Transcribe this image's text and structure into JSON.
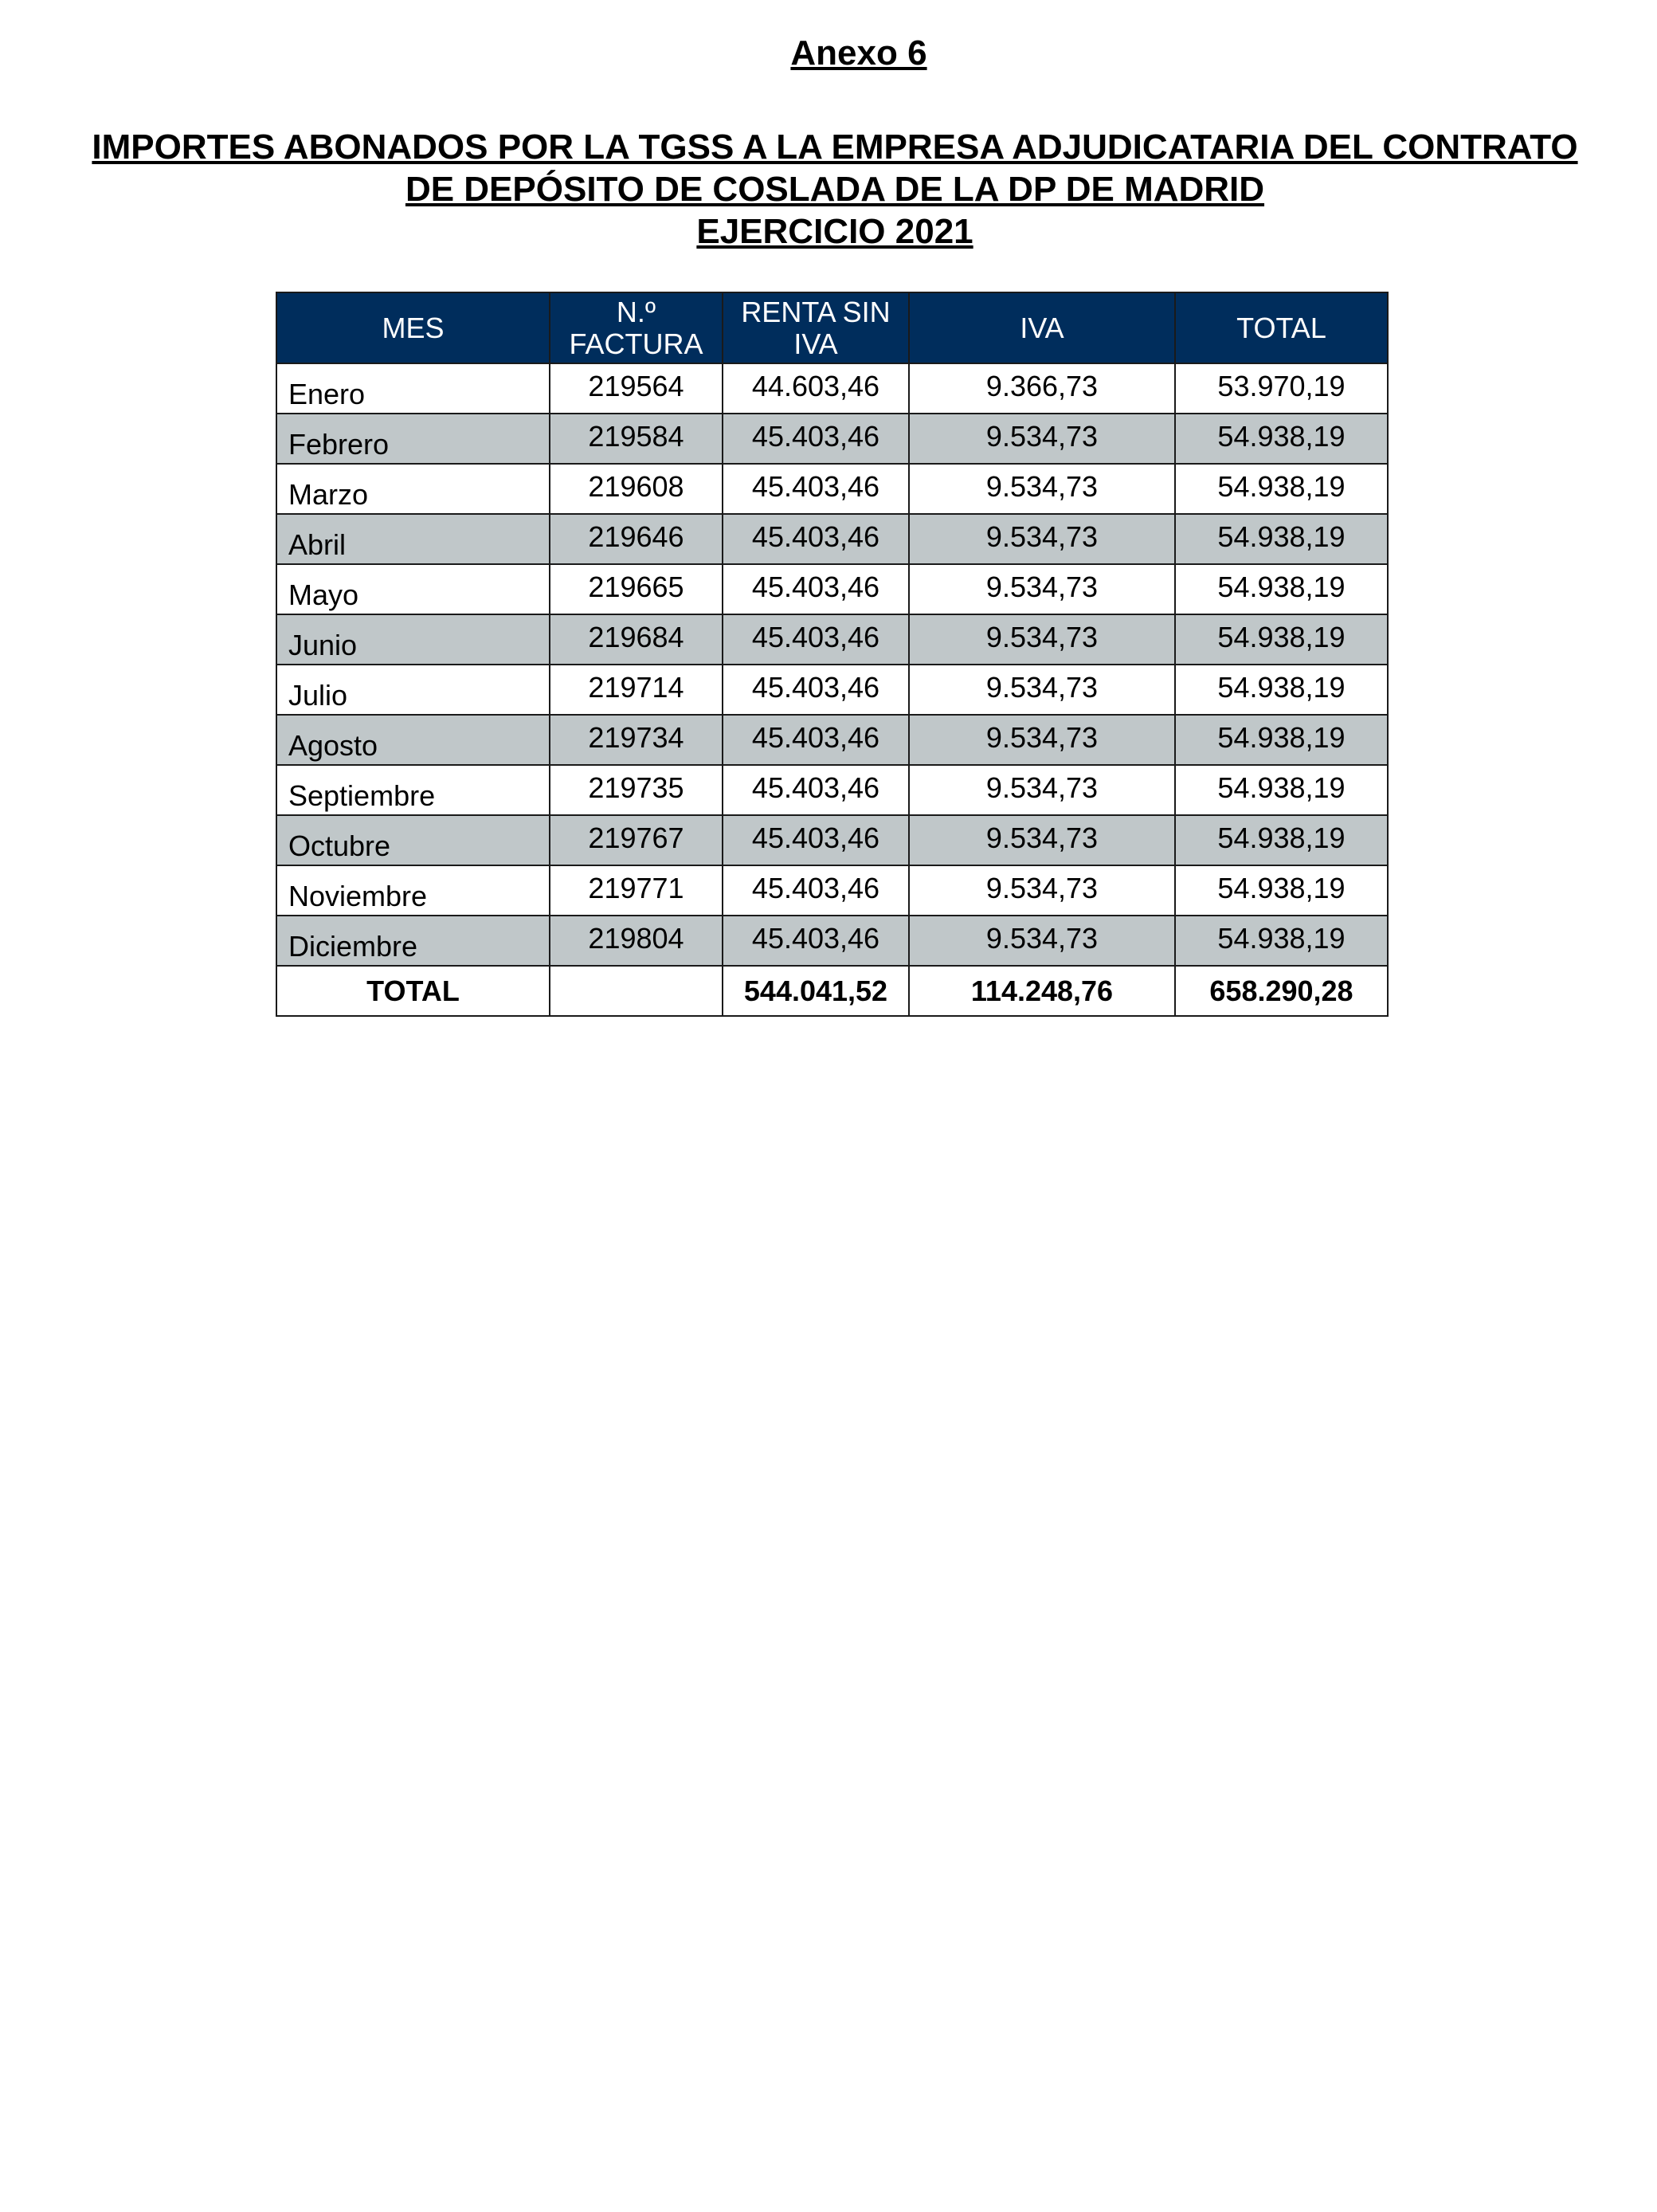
{
  "annex_title": "Anexo 6",
  "heading": {
    "line1": "IMPORTES ABONADOS POR LA TGSS A LA EMPRESA ADJUDICATARIA DEL CONTRATO",
    "line2": "DE DEPÓSITO DE COSLADA DE LA DP DE MADRID",
    "line3": "EJERCICIO 2021"
  },
  "colors": {
    "header_bg": "#002d5c",
    "alt_row_bg": "#c0c7c9"
  },
  "table": {
    "headers": [
      "MES",
      "N.º FACTURA",
      "RENTA SIN IVA",
      "IVA",
      "TOTAL"
    ],
    "rows": [
      [
        "Enero",
        "219564",
        "44.603,46",
        "9.366,73",
        "53.970,19"
      ],
      [
        "Febrero",
        "219584",
        "45.403,46",
        "9.534,73",
        "54.938,19"
      ],
      [
        "Marzo",
        "219608",
        "45.403,46",
        "9.534,73",
        "54.938,19"
      ],
      [
        "Abril",
        "219646",
        "45.403,46",
        "9.534,73",
        "54.938,19"
      ],
      [
        "Mayo",
        "219665",
        "45.403,46",
        "9.534,73",
        "54.938,19"
      ],
      [
        "Junio",
        "219684",
        "45.403,46",
        "9.534,73",
        "54.938,19"
      ],
      [
        "Julio",
        "219714",
        "45.403,46",
        "9.534,73",
        "54.938,19"
      ],
      [
        "Agosto",
        "219734",
        "45.403,46",
        "9.534,73",
        "54.938,19"
      ],
      [
        "Septiembre",
        "219735",
        "45.403,46",
        "9.534,73",
        "54.938,19"
      ],
      [
        "Octubre",
        "219767",
        "45.403,46",
        "9.534,73",
        "54.938,19"
      ],
      [
        "Noviembre",
        "219771",
        "45.403,46",
        "9.534,73",
        "54.938,19"
      ],
      [
        "Diciembre",
        "219804",
        "45.403,46",
        "9.534,73",
        "54.938,19"
      ]
    ],
    "total_row": [
      "TOTAL",
      "",
      "544.041,52",
      "114.248,76",
      "658.290,28"
    ]
  }
}
